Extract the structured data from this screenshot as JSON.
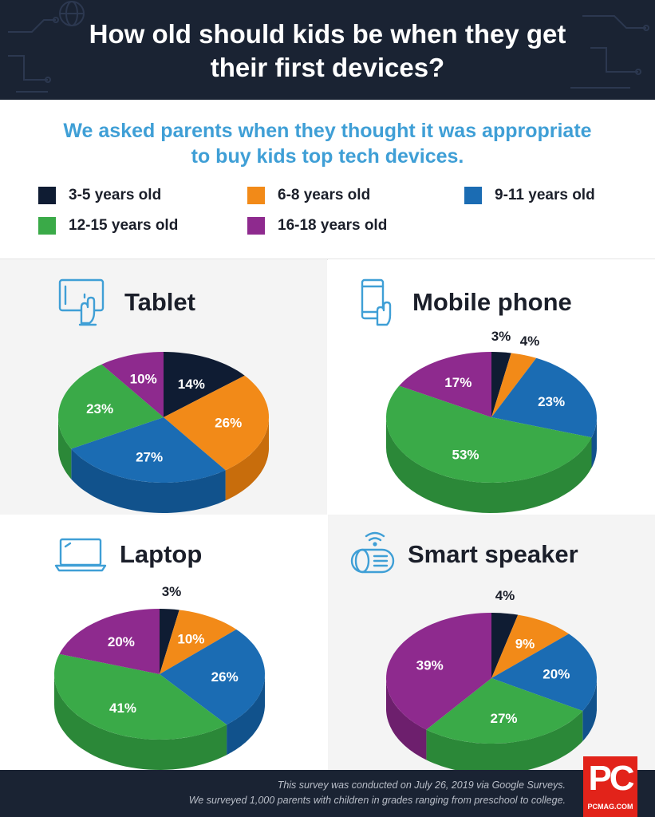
{
  "header": {
    "title_line1": "How old should kids be when they get",
    "title_line2": "their first devices?"
  },
  "intro": {
    "line1": "We asked parents when they thought it was appropriate",
    "line2": "to buy kids top tech devices."
  },
  "legend": [
    {
      "label": "3-5 years old",
      "color": "#0f1c33"
    },
    {
      "label": "6-8 years old",
      "color": "#f28a18"
    },
    {
      "label": "9-11 years old",
      "color": "#1b6cb3"
    },
    {
      "label": "12-15 years old",
      "color": "#3aaa48"
    },
    {
      "label": "16-18 years old",
      "color": "#8e2a8e"
    }
  ],
  "chart_data": [
    {
      "type": "pie",
      "title": "Tablet",
      "categories": [
        "3-5 years old",
        "6-8 years old",
        "9-11 years old",
        "12-15 years old",
        "16-18 years old"
      ],
      "values": [
        14,
        26,
        27,
        23,
        10
      ],
      "labels": [
        "14%",
        "26%",
        "27%",
        "23%",
        "10%"
      ]
    },
    {
      "type": "pie",
      "title": "Mobile phone",
      "categories": [
        "3-5 years old",
        "6-8 years old",
        "9-11 years old",
        "12-15 years old",
        "16-18 years old"
      ],
      "values": [
        3,
        4,
        23,
        53,
        17
      ],
      "labels": [
        "3%",
        "4%",
        "23%",
        "53%",
        "17%"
      ]
    },
    {
      "type": "pie",
      "title": "Laptop",
      "categories": [
        "3-5 years old",
        "6-8 years old",
        "9-11 years old",
        "12-15 years old",
        "16-18 years old"
      ],
      "values": [
        3,
        10,
        26,
        41,
        20
      ],
      "labels": [
        "3%",
        "10%",
        "26%",
        "41%",
        "20%"
      ]
    },
    {
      "type": "pie",
      "title": "Smart speaker",
      "categories": [
        "3-5 years old",
        "6-8 years old",
        "9-11 years old",
        "12-15 years old",
        "16-18 years old"
      ],
      "values": [
        4,
        9,
        20,
        27,
        39
      ],
      "labels": [
        "4%",
        "9%",
        "20%",
        "27%",
        "39%"
      ]
    }
  ],
  "icons": [
    "tablet-touch-icon",
    "phone-touch-icon",
    "laptop-icon",
    "smart-speaker-icon"
  ],
  "footer": {
    "line1": "This survey was conducted on July 26, 2019 via Google Surveys.",
    "line2": "We surveyed 1,000 parents with children in grades ranging from preschool to college.",
    "logo": "PC",
    "logo_sub": "PCMAG.COM"
  }
}
